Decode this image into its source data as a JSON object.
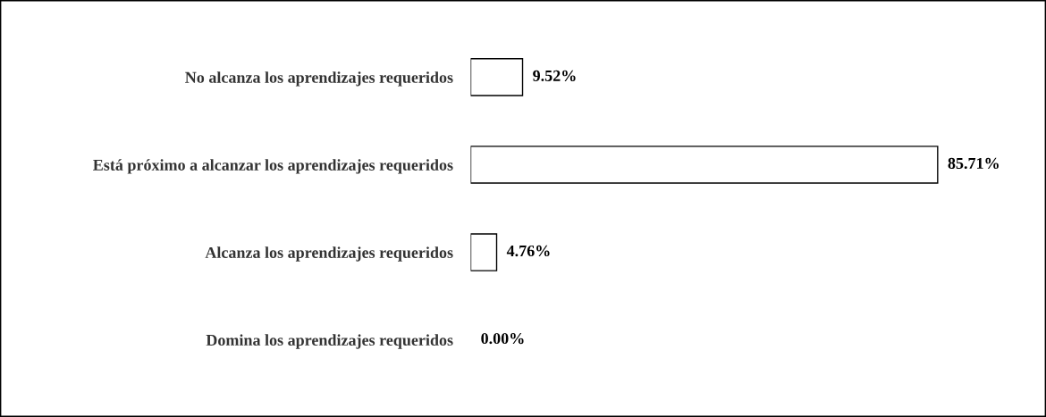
{
  "chart_data": {
    "type": "bar",
    "orientation": "horizontal",
    "categories": [
      "No alcanza los aprendizajes requeridos",
      "Está próximo a alcanzar los aprendizajes requeridos",
      "Alcanza los aprendizajes requeridos",
      "Domina los aprendizajes requeridos"
    ],
    "values": [
      9.52,
      85.71,
      4.76,
      0.0
    ],
    "value_labels": [
      "9.52%",
      "85.71%",
      "4.76%",
      "0.00%"
    ],
    "color": "#ffffff",
    "tick_labels": "y",
    "grid": false,
    "legend": false
  }
}
